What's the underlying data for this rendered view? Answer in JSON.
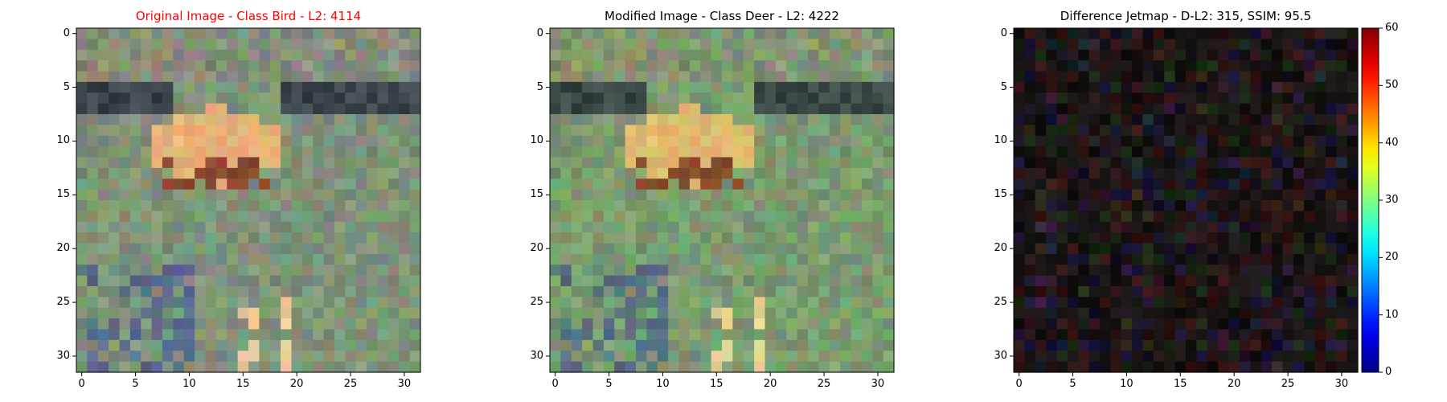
{
  "chart_data": [
    {
      "type": "heatmap",
      "title": "Original Image - Class Bird - L2: 4114",
      "title_color": "#ff0000",
      "pixel_grid": [
        32,
        32
      ],
      "xticks": [
        "0",
        "5",
        "10",
        "15",
        "20",
        "25",
        "30"
      ],
      "yticks": [
        "0",
        "5",
        "10",
        "15",
        "20",
        "25",
        "30"
      ],
      "xlim": [
        -0.5,
        31.5
      ],
      "ylim": [
        31.5,
        -0.5
      ],
      "palette": "natural-photo"
    },
    {
      "type": "heatmap",
      "title": "Modified Image - Class Deer - L2: 4222",
      "title_color": "#000000",
      "pixel_grid": [
        32,
        32
      ],
      "xticks": [
        "0",
        "5",
        "10",
        "15",
        "20",
        "25",
        "30"
      ],
      "yticks": [
        "0",
        "5",
        "10",
        "15",
        "20",
        "25",
        "30"
      ],
      "xlim": [
        -0.5,
        31.5
      ],
      "ylim": [
        31.5,
        -0.5
      ],
      "palette": "natural-photo"
    },
    {
      "type": "heatmap",
      "title": "Difference Jetmap - D-L2: 315, SSIM: 95.5",
      "title_color": "#000000",
      "pixel_grid": [
        32,
        32
      ],
      "xticks": [
        "0",
        "5",
        "10",
        "15",
        "20",
        "25",
        "30"
      ],
      "yticks": [
        "0",
        "5",
        "10",
        "15",
        "20",
        "25",
        "30"
      ],
      "xlim": [
        -0.5,
        31.5
      ],
      "ylim": [
        31.5,
        -0.5
      ],
      "colorbar": {
        "colormap": "jet",
        "range": [
          0,
          60
        ],
        "ticks": [
          "0",
          "10",
          "20",
          "30",
          "40",
          "50",
          "60"
        ]
      }
    }
  ]
}
